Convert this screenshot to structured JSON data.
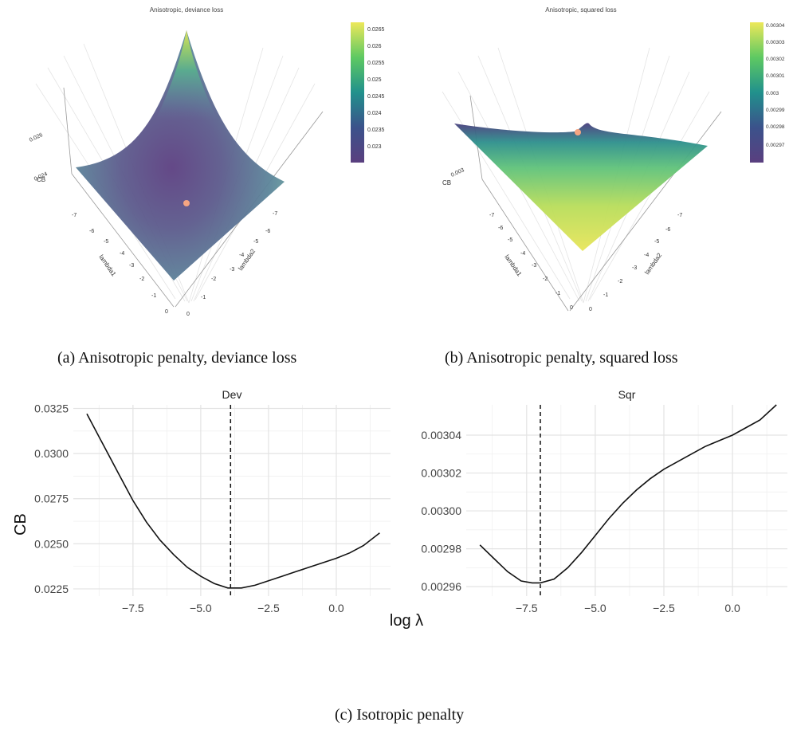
{
  "figure": {
    "caption_a": "(a) Anisotropic penalty, deviance loss",
    "caption_b": "(b) Anisotropic penalty, squared loss",
    "caption_c": "(c) Isotropic penalty"
  },
  "chart_data": [
    {
      "type": "surface",
      "title": "Anisotropic, deviance loss",
      "xlabel": "lambda1",
      "ylabel": "lambda2",
      "zlabel": "CB",
      "x_ticks": [
        "-7",
        "-6",
        "-5",
        "-4",
        "-3",
        "-2",
        "-1",
        "0"
      ],
      "y_ticks": [
        "-7",
        "-6",
        "-5",
        "-4",
        "-3",
        "-2",
        "-1",
        "0"
      ],
      "z_ticks": [
        "0.024",
        "0.026"
      ],
      "colorbar": {
        "ticks": [
          "0.0265",
          "0.026",
          "0.0255",
          "0.025",
          "0.0245",
          "0.024",
          "0.0235",
          "0.023"
        ],
        "min": 0.0226,
        "max": 0.0268
      },
      "colorscale": "viridis",
      "surface_samples": [
        {
          "lambda1": -7.5,
          "lambda2": 0,
          "CB": 0.0268
        },
        {
          "lambda1": -7.5,
          "lambda2": -7.5,
          "CB": 0.0241
        },
        {
          "lambda1": 0,
          "lambda2": 0,
          "CB": 0.0238
        },
        {
          "lambda1": 0,
          "lambda2": -7.5,
          "CB": 0.0237
        },
        {
          "lambda1": -4,
          "lambda2": -4,
          "CB": 0.0226
        }
      ],
      "minimum_marker": {
        "lambda1": -4,
        "lambda2": -4,
        "CB": 0.0226,
        "color": "#f5a582"
      }
    },
    {
      "type": "surface",
      "title": "Anisotropic, squared loss",
      "xlabel": "lambda1",
      "ylabel": "lambda2",
      "zlabel": "CB",
      "x_ticks": [
        "-7",
        "-6",
        "-5",
        "-4",
        "-3",
        "-2",
        "-1",
        "0"
      ],
      "y_ticks": [
        "-7",
        "-6",
        "-5",
        "-4",
        "-3",
        "-2",
        "-1",
        "0"
      ],
      "z_ticks": [
        "0.003"
      ],
      "colorbar": {
        "ticks": [
          "0.00304",
          "0.00303",
          "0.00302",
          "0.00301",
          "0.003",
          "0.00299",
          "0.00298",
          "0.00297"
        ],
        "min": 0.00296,
        "max": 0.00304
      },
      "colorscale": "viridis",
      "surface_samples": [
        {
          "lambda1": -7.5,
          "lambda2": -7.5,
          "CB": 0.00296
        },
        {
          "lambda1": -7.5,
          "lambda2": 0,
          "CB": 0.003
        },
        {
          "lambda1": 0,
          "lambda2": -7.5,
          "CB": 0.00301
        },
        {
          "lambda1": 0,
          "lambda2": 0,
          "CB": 0.00304
        }
      ],
      "minimum_marker": {
        "lambda1": -7.2,
        "lambda2": -7.2,
        "CB": 0.00296,
        "color": "#f5a582"
      }
    },
    {
      "type": "line",
      "title": "Dev",
      "xlabel": "log λ",
      "ylabel": "CB",
      "xlim": [
        -9.7,
        2.0
      ],
      "ylim": [
        0.0221,
        0.0327
      ],
      "x_ticks": [
        -7.5,
        -5.0,
        -2.5,
        0.0
      ],
      "x_tick_labels": [
        "−7.5",
        "−5.0",
        "−2.5",
        "0.0"
      ],
      "y_ticks": [
        0.0225,
        0.025,
        0.0275,
        0.03,
        0.0325
      ],
      "y_tick_labels": [
        "0.0225",
        "0.0250",
        "0.0275",
        "0.0300",
        "0.0325"
      ],
      "grid": true,
      "vline": -3.9,
      "x": [
        -9.2,
        -8.6,
        -8.0,
        -7.5,
        -7.0,
        -6.5,
        -6.0,
        -5.5,
        -5.0,
        -4.5,
        -4.0,
        -3.5,
        -3.0,
        -2.5,
        -2.0,
        -1.5,
        -1.0,
        -0.5,
        0.0,
        0.5,
        1.0,
        1.6
      ],
      "y": [
        0.0322,
        0.0305,
        0.0288,
        0.0274,
        0.0262,
        0.0252,
        0.0244,
        0.0237,
        0.0232,
        0.0228,
        0.02255,
        0.02255,
        0.0227,
        0.02295,
        0.0232,
        0.02345,
        0.0237,
        0.02395,
        0.0242,
        0.0245,
        0.0249,
        0.0256
      ]
    },
    {
      "type": "line",
      "title": "Sqr",
      "xlabel": "log λ",
      "ylabel": "",
      "xlim": [
        -9.7,
        2.0
      ],
      "ylim": [
        0.002955,
        0.003056
      ],
      "x_ticks": [
        -7.5,
        -5.0,
        -2.5,
        0.0
      ],
      "x_tick_labels": [
        "−7.5",
        "−5.0",
        "−2.5",
        "0.0"
      ],
      "y_ticks": [
        0.00296,
        0.00298,
        0.003,
        0.00302,
        0.00304
      ],
      "y_tick_labels": [
        "0.00296",
        "0.00298",
        "0.00300",
        "0.00302",
        "0.00304"
      ],
      "grid": true,
      "vline": -7.0,
      "x": [
        -9.2,
        -8.7,
        -8.2,
        -7.7,
        -7.3,
        -7.0,
        -6.5,
        -6.0,
        -5.5,
        -5.0,
        -4.5,
        -4.0,
        -3.5,
        -3.0,
        -2.5,
        -2.0,
        -1.5,
        -1.0,
        -0.5,
        0.0,
        0.5,
        1.0,
        1.6
      ],
      "y": [
        0.002982,
        0.002975,
        0.002968,
        0.002963,
        0.002962,
        0.002962,
        0.002964,
        0.00297,
        0.002978,
        0.002987,
        0.002996,
        0.003004,
        0.003011,
        0.003017,
        0.003022,
        0.003026,
        0.00303,
        0.003034,
        0.003037,
        0.00304,
        0.003044,
        0.003048,
        0.003056
      ]
    }
  ]
}
